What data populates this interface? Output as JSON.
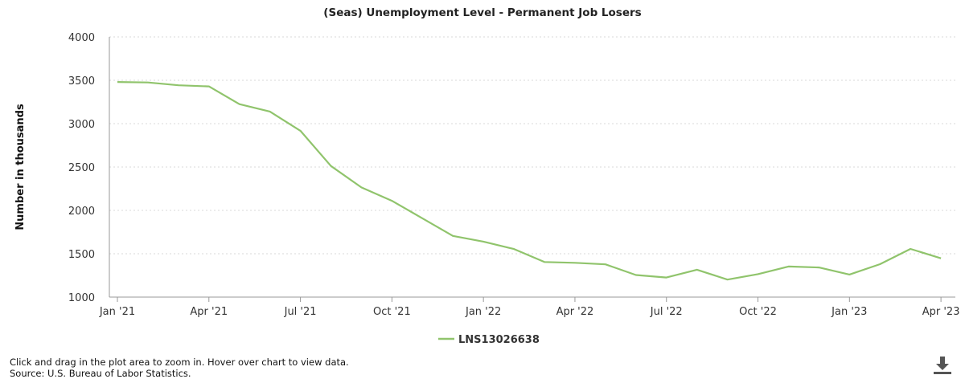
{
  "chart_data": {
    "type": "line",
    "title": "(Seas) Unemployment Level - Permanent Job Losers",
    "ylabel": "Number in thousands",
    "xlabel": "",
    "ylim": [
      1000,
      4000
    ],
    "y_ticks": [
      1000,
      1500,
      2000,
      2500,
      3000,
      3500,
      4000
    ],
    "x_range": [
      "Jan '21",
      "Apr '23"
    ],
    "x_ticks": [
      {
        "label": "Jan '21",
        "index": 0
      },
      {
        "label": "Apr '21",
        "index": 3
      },
      {
        "label": "Jul '21",
        "index": 6
      },
      {
        "label": "Oct '21",
        "index": 9
      },
      {
        "label": "Jan '22",
        "index": 12
      },
      {
        "label": "Apr '22",
        "index": 15
      },
      {
        "label": "Jul '22",
        "index": 18
      },
      {
        "label": "Oct '22",
        "index": 21
      },
      {
        "label": "Jan '23",
        "index": 24
      },
      {
        "label": "Apr '23",
        "index": 27
      }
    ],
    "grid": "horizontal dotted",
    "legend_position": "bottom-center",
    "series": [
      {
        "name": "LNS13026638",
        "color": "#90c46c",
        "x": [
          "2021-01",
          "2021-02",
          "2021-03",
          "2021-04",
          "2021-05",
          "2021-06",
          "2021-07",
          "2021-08",
          "2021-09",
          "2021-10",
          "2021-11",
          "2021-12",
          "2022-01",
          "2022-02",
          "2022-03",
          "2022-04",
          "2022-05",
          "2022-06",
          "2022-07",
          "2022-08",
          "2022-09",
          "2022-10",
          "2022-11",
          "2022-12",
          "2023-01",
          "2023-02",
          "2023-03",
          "2023-04"
        ],
        "values": [
          3481,
          3475,
          3443,
          3430,
          3225,
          3140,
          2918,
          2512,
          2265,
          2110,
          1908,
          1706,
          1640,
          1555,
          1405,
          1395,
          1378,
          1255,
          1226,
          1316,
          1202,
          1265,
          1353,
          1342,
          1260,
          1380,
          1556,
          1447
        ]
      }
    ]
  },
  "footer": {
    "line1": "Click and drag in the plot area to zoom in. Hover over chart to view data.",
    "line2": "Source: U.S. Bureau of Labor Statistics."
  },
  "download_icon": "download-icon"
}
